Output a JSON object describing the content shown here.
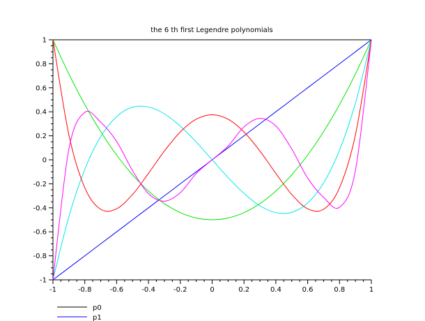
{
  "chart_data": {
    "type": "line",
    "title": "the 6 th first Legendre polynomials",
    "xlabel": "",
    "ylabel": "",
    "xlim": [
      -1,
      1
    ],
    "ylim": [
      -1,
      1
    ],
    "grid": false,
    "legend_placement": "bottom-left",
    "x_ticks": [
      "-1",
      "-0.8",
      "-0.6",
      "-0.4",
      "-0.2",
      "0",
      "0.2",
      "0.4",
      "0.6",
      "0.8",
      "1"
    ],
    "y_ticks": [
      "-1",
      "-0.8",
      "-0.6",
      "-0.4",
      "-0.2",
      "0",
      "0.2",
      "0.4",
      "0.6",
      "0.8",
      "1"
    ],
    "x": [
      -1.0,
      -0.9,
      -0.8,
      -0.7,
      -0.6,
      -0.5,
      -0.4,
      -0.3,
      -0.2,
      -0.1,
      0.0,
      0.1,
      0.2,
      0.3,
      0.4,
      0.5,
      0.6,
      0.7,
      0.8,
      0.9,
      1.0
    ],
    "series": [
      {
        "name": "p0",
        "color": "#000000",
        "values": [
          1,
          1,
          1,
          1,
          1,
          1,
          1,
          1,
          1,
          1,
          1,
          1,
          1,
          1,
          1,
          1,
          1,
          1,
          1,
          1,
          1
        ]
      },
      {
        "name": "p1",
        "color": "#0000ff",
        "values": [
          -1.0,
          -0.9,
          -0.8,
          -0.7,
          -0.6,
          -0.5,
          -0.4,
          -0.3,
          -0.2,
          -0.1,
          0.0,
          0.1,
          0.2,
          0.3,
          0.4,
          0.5,
          0.6,
          0.7,
          0.8,
          0.9,
          1.0
        ]
      },
      {
        "color": "#00e600",
        "values": [
          1.0,
          0.715,
          0.46,
          0.235,
          0.04,
          -0.125,
          -0.26,
          -0.365,
          -0.44,
          -0.485,
          -0.5,
          -0.485,
          -0.44,
          -0.365,
          -0.26,
          -0.125,
          0.04,
          0.235,
          0.46,
          0.715,
          1.0
        ]
      },
      {
        "color": "#00e6e6",
        "values": [
          -1.0,
          -0.473,
          -0.08,
          0.193,
          0.36,
          0.438,
          0.44,
          0.383,
          0.28,
          0.148,
          0.0,
          -0.148,
          -0.28,
          -0.383,
          -0.44,
          -0.438,
          -0.36,
          -0.193,
          0.08,
          0.473,
          1.0
        ]
      },
      {
        "color": "#ff0000",
        "values": [
          1.0,
          0.208,
          -0.233,
          -0.412,
          -0.408,
          -0.289,
          -0.113,
          0.073,
          0.232,
          0.338,
          0.375,
          0.338,
          0.232,
          0.073,
          -0.113,
          -0.289,
          -0.408,
          -0.412,
          -0.233,
          0.208,
          1.0
        ]
      },
      {
        "color": "#ff00ff",
        "values": [
          -1.0,
          0.089,
          0.395,
          0.313,
          0.153,
          -0.09,
          -0.282,
          -0.345,
          -0.274,
          -0.114,
          0.0,
          0.114,
          0.274,
          0.345,
          0.282,
          0.09,
          -0.153,
          -0.313,
          -0.395,
          -0.089,
          1.0
        ]
      }
    ]
  }
}
